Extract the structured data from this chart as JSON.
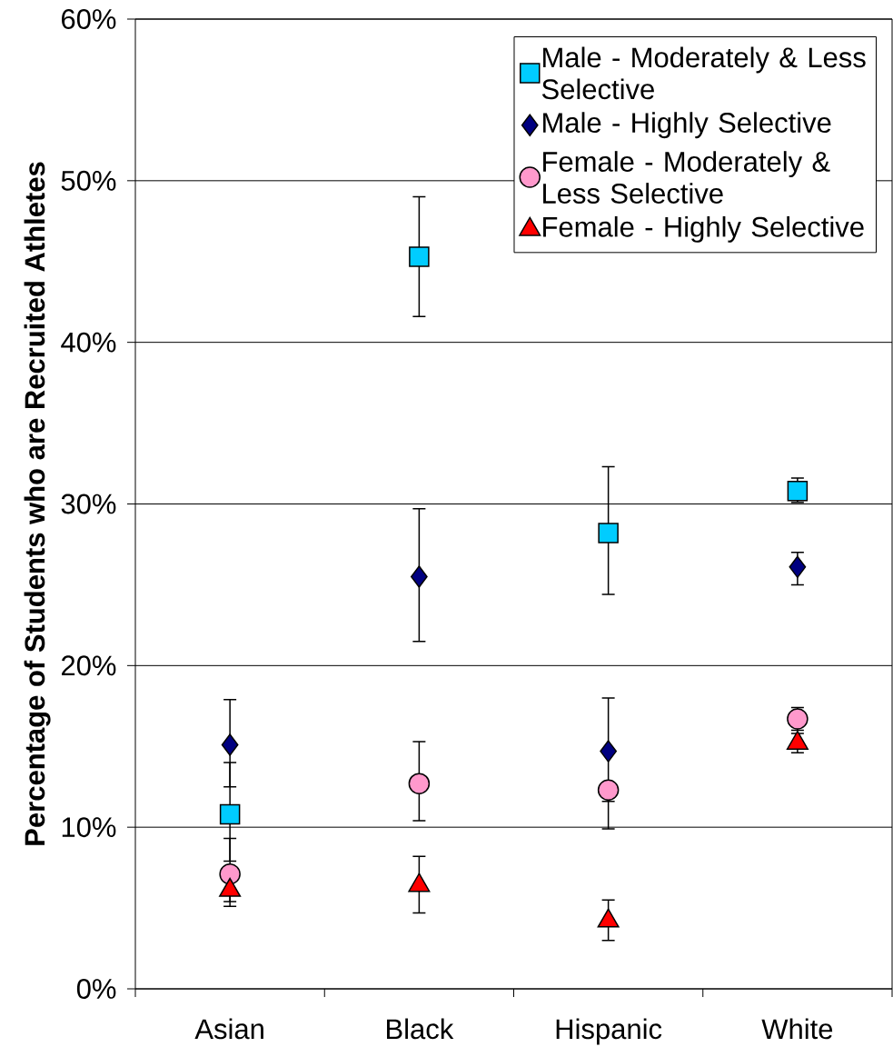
{
  "chart_data": {
    "type": "scatter",
    "ylabel": "Percentage of Students who are Recruited Athletes",
    "categories": [
      "Asian",
      "Black",
      "Hispanic",
      "White"
    ],
    "series": [
      {
        "name": "Male - Moderately & Less Selective",
        "color": "#00ccff",
        "marker": "square",
        "values": [
          10.8,
          45.3,
          28.2,
          30.8
        ],
        "errors": [
          [
            7.9,
            14.0
          ],
          [
            41.6,
            49.0
          ],
          [
            24.4,
            32.3
          ],
          [
            30.1,
            31.6
          ]
        ]
      },
      {
        "name": "Male - Highly Selective",
        "color": "#000080",
        "marker": "diamond",
        "values": [
          15.1,
          25.5,
          14.7,
          26.1
        ],
        "errors": [
          [
            12.5,
            17.9
          ],
          [
            21.5,
            29.7
          ],
          [
            11.6,
            18.0
          ],
          [
            25.0,
            27.0
          ]
        ]
      },
      {
        "name": "Female - Moderately & Less Selective",
        "color": "#ff99cc",
        "marker": "circle",
        "values": [
          7.1,
          12.7,
          12.3,
          16.7
        ],
        "errors": [
          [
            5.1,
            9.3
          ],
          [
            10.4,
            15.3
          ],
          [
            9.9,
            12.3
          ],
          [
            16.0,
            17.4
          ]
        ]
      },
      {
        "name": "Female - Highly Selective",
        "color": "#ff0000",
        "marker": "triangle",
        "values": [
          6.1,
          6.4,
          4.2,
          15.2
        ],
        "errors": [
          [
            5.4,
            6.8
          ],
          [
            4.7,
            8.2
          ],
          [
            3.0,
            5.5
          ],
          [
            14.6,
            15.8
          ]
        ]
      }
    ],
    "ylim": [
      0,
      60
    ],
    "yticks": [
      {
        "value": 0,
        "label": "0%"
      },
      {
        "value": 10,
        "label": "10%"
      },
      {
        "value": 20,
        "label": "20%"
      },
      {
        "value": 30,
        "label": "30%"
      },
      {
        "value": 40,
        "label": "40%"
      },
      {
        "value": 50,
        "label": "50%"
      },
      {
        "value": 60,
        "label": "60%"
      }
    ],
    "grid": "y",
    "legend": "top right"
  }
}
